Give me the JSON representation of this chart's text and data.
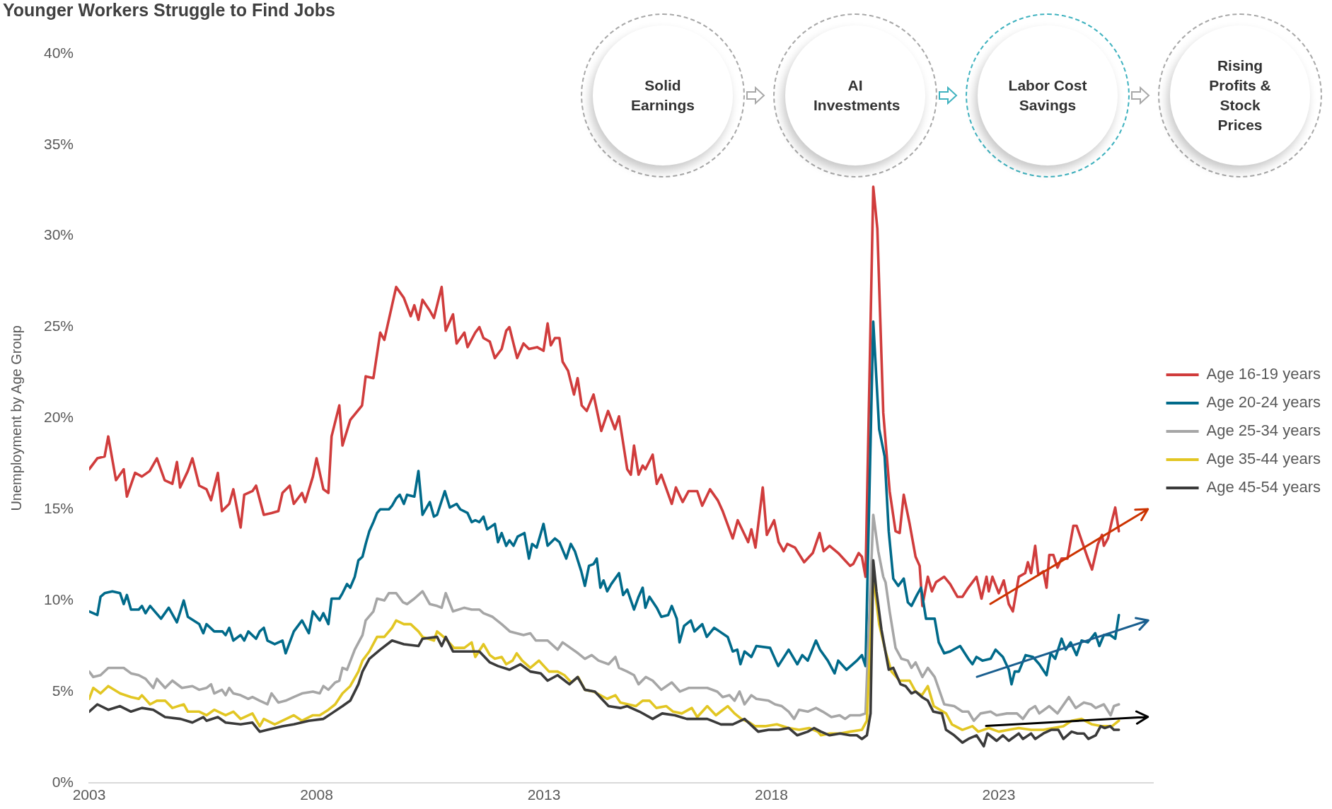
{
  "chart_data": {
    "type": "line",
    "title": "Younger Workers Struggle to Find Jobs",
    "ylabel": "Unemployment by Age Group",
    "legend": "right",
    "grid": false,
    "marker": "none",
    "xlim": [
      2003,
      2026.4
    ],
    "xticks": [
      2003,
      2008,
      2013,
      2018,
      2023
    ],
    "ylim": [
      0,
      40
    ],
    "yticks": [
      {
        "value": 0,
        "label": "0%"
      },
      {
        "value": 5,
        "label": "5%"
      },
      {
        "value": 10,
        "label": "10%"
      },
      {
        "value": 15,
        "label": "15%"
      },
      {
        "value": 20,
        "label": "20%"
      },
      {
        "value": 25,
        "label": "25%"
      },
      {
        "value": 30,
        "label": "30%"
      },
      {
        "value": 35,
        "label": "35%"
      },
      {
        "value": 40,
        "label": "40%"
      }
    ],
    "annotations": [
      "Solid Earnings",
      "AI Investments",
      "Labor Cost Savings",
      "Rising Profits & Stock Prices"
    ],
    "series": [
      {
        "name": "Age 16-19 years",
        "color": "#d03c3c",
        "x": [
          2003.0,
          2003.18,
          2003.34,
          2003.42,
          2003.59,
          2003.76,
          2003.83,
          2004.01,
          2004.16,
          2004.33,
          2004.49,
          2004.66,
          2004.83,
          2004.93,
          2005.0,
          2005.17,
          2005.27,
          2005.42,
          2005.58,
          2005.68,
          2005.83,
          2005.92,
          2006.08,
          2006.17,
          2006.33,
          2006.41,
          2006.59,
          2006.67,
          2006.84,
          2007.01,
          2007.16,
          2007.25,
          2007.41,
          2007.5,
          2007.68,
          2007.75,
          2007.92,
          2008.0,
          2008.15,
          2008.26,
          2008.33,
          2008.5,
          2008.57,
          2008.74,
          2009.0,
          2009.08,
          2009.25,
          2009.4,
          2009.49,
          2009.66,
          2009.75,
          2009.92,
          2010.07,
          2010.15,
          2010.24,
          2010.33,
          2010.49,
          2010.58,
          2010.75,
          2010.84,
          2011.0,
          2011.08,
          2011.25,
          2011.32,
          2011.49,
          2011.58,
          2011.67,
          2011.81,
          2011.92,
          2012.07,
          2012.17,
          2012.24,
          2012.41,
          2012.55,
          2012.67,
          2012.85,
          2012.99,
          2013.08,
          2013.15,
          2013.24,
          2013.34,
          2013.41,
          2013.53,
          2013.66,
          2013.74,
          2013.83,
          2013.94,
          2014.09,
          2014.26,
          2014.41,
          2014.56,
          2014.65,
          2014.83,
          2014.91,
          2014.98,
          2015.08,
          2015.17,
          2015.23,
          2015.39,
          2015.48,
          2015.58,
          2015.81,
          2015.9,
          2016.05,
          2016.18,
          2016.37,
          2016.48,
          2016.65,
          2016.82,
          2016.93,
          2017.15,
          2017.26,
          2017.49,
          2017.56,
          2017.65,
          2017.81,
          2017.9,
          2018.06,
          2018.16,
          2018.27,
          2018.35,
          2018.52,
          2018.72,
          2018.91,
          2019.06,
          2019.15,
          2019.28,
          2019.47,
          2019.62,
          2019.73,
          2019.8,
          2019.92,
          2019.99,
          2020.07,
          2020.24,
          2020.33,
          2020.46,
          2020.6,
          2020.73,
          2020.82,
          2020.91,
          2021.04,
          2021.17,
          2021.26,
          2021.32,
          2021.44,
          2021.53,
          2021.62,
          2021.8,
          2021.93,
          2022.09,
          2022.2,
          2022.33,
          2022.51,
          2022.62,
          2022.73,
          2022.78,
          2022.86,
          2023.0,
          2023.11,
          2023.22,
          2023.31,
          2023.44,
          2023.58,
          2023.64,
          2023.71,
          2023.8,
          2023.87,
          2023.98,
          2024.05,
          2024.11,
          2024.2,
          2024.29,
          2024.38,
          2024.51,
          2024.64,
          2024.71,
          2024.82,
          2024.96,
          2025.05,
          2025.18,
          2025.27,
          2025.31,
          2025.4,
          2025.49,
          2025.56,
          2025.64
        ],
        "values": [
          17.2,
          17.8,
          17.9,
          19.0,
          16.6,
          17.2,
          15.7,
          17.0,
          16.8,
          17.1,
          17.8,
          16.6,
          16.4,
          17.6,
          16.2,
          17.1,
          17.8,
          16.3,
          16.1,
          15.5,
          17.0,
          14.9,
          15.3,
          16.1,
          14.0,
          15.8,
          16.0,
          16.3,
          14.7,
          14.8,
          14.9,
          15.9,
          16.3,
          15.3,
          15.9,
          15.4,
          16.8,
          17.8,
          16.1,
          15.9,
          19.0,
          20.7,
          18.5,
          19.9,
          20.7,
          22.3,
          22.2,
          24.7,
          24.3,
          26.2,
          27.2,
          26.6,
          25.6,
          26.2,
          25.4,
          26.5,
          25.9,
          25.5,
          27.2,
          24.8,
          25.7,
          24.1,
          24.7,
          23.9,
          24.7,
          25.0,
          24.4,
          24.2,
          23.3,
          23.8,
          24.8,
          25.0,
          23.3,
          24.1,
          23.8,
          23.9,
          23.7,
          25.2,
          24.0,
          24.4,
          24.4,
          23.1,
          22.6,
          21.3,
          22.2,
          20.7,
          20.4,
          21.3,
          19.3,
          20.4,
          19.4,
          20.1,
          17.2,
          16.9,
          18.5,
          16.9,
          17.4,
          17.2,
          18.0,
          16.4,
          16.9,
          15.3,
          16.2,
          15.4,
          16.0,
          16.0,
          15.2,
          16.1,
          15.5,
          14.9,
          13.4,
          14.4,
          13.2,
          13.9,
          12.9,
          16.2,
          13.6,
          14.4,
          13.2,
          12.7,
          13.1,
          12.9,
          12.1,
          12.6,
          13.7,
          12.7,
          13.0,
          12.6,
          12.2,
          11.9,
          12.0,
          12.6,
          12.4,
          11.3,
          32.7,
          30.4,
          20.3,
          16.0,
          13.8,
          13.7,
          15.8,
          14.2,
          12.4,
          11.9,
          9.7,
          11.3,
          10.5,
          11.0,
          11.3,
          10.9,
          10.2,
          10.2,
          10.7,
          11.3,
          10.1,
          11.3,
          10.5,
          11.3,
          10.4,
          11.1,
          9.8,
          9.4,
          11.3,
          11.5,
          12.1,
          11.5,
          13.0,
          11.4,
          11.6,
          10.7,
          12.5,
          12.5,
          11.8,
          12.3,
          12.3,
          14.1,
          14.1,
          13.3,
          12.3,
          11.7,
          13.1,
          13.6,
          13.0,
          13.4,
          14.4,
          15.1,
          13.8
        ]
      },
      {
        "name": "Age 20-24 years",
        "color": "#006a8a",
        "x": [
          2003.0,
          2003.18,
          2003.25,
          2003.34,
          2003.51,
          2003.68,
          2003.76,
          2003.83,
          2003.92,
          2004.09,
          2004.16,
          2004.24,
          2004.34,
          2004.58,
          2004.75,
          2004.93,
          2005.08,
          2005.17,
          2005.42,
          2005.51,
          2005.58,
          2005.75,
          2005.93,
          2006.0,
          2006.08,
          2006.17,
          2006.33,
          2006.41,
          2006.5,
          2006.67,
          2006.75,
          2006.84,
          2006.92,
          2007.08,
          2007.25,
          2007.32,
          2007.5,
          2007.68,
          2007.83,
          2007.92,
          2008.07,
          2008.15,
          2008.26,
          2008.33,
          2008.5,
          2008.57,
          2008.67,
          2008.74,
          2008.84,
          2008.92,
          2009.01,
          2009.08,
          2009.16,
          2009.25,
          2009.33,
          2009.4,
          2009.59,
          2009.66,
          2009.75,
          2009.83,
          2009.92,
          2009.99,
          2010.15,
          2010.24,
          2010.33,
          2010.49,
          2010.58,
          2010.65,
          2010.82,
          2010.93,
          2011.08,
          2011.16,
          2011.32,
          2011.41,
          2011.49,
          2011.58,
          2011.67,
          2011.75,
          2011.92,
          2011.99,
          2012.07,
          2012.17,
          2012.24,
          2012.33,
          2012.42,
          2012.57,
          2012.67,
          2012.74,
          2012.84,
          2012.99,
          2013.08,
          2013.24,
          2013.34,
          2013.49,
          2013.59,
          2013.68,
          2013.82,
          2013.9,
          2013.99,
          2014.09,
          2014.16,
          2014.24,
          2014.31,
          2014.39,
          2014.48,
          2014.65,
          2014.74,
          2014.83,
          2014.98,
          2015.08,
          2015.17,
          2015.23,
          2015.32,
          2015.48,
          2015.58,
          2015.73,
          2015.81,
          2015.92,
          2015.98,
          2016.08,
          2016.23,
          2016.31,
          2016.48,
          2016.58,
          2016.74,
          2017.04,
          2017.15,
          2017.25,
          2017.32,
          2017.41,
          2017.56,
          2017.67,
          2017.97,
          2018.15,
          2018.38,
          2018.57,
          2018.68,
          2018.8,
          2018.98,
          2019.07,
          2019.24,
          2019.39,
          2019.47,
          2019.65,
          2019.88,
          2019.99,
          2020.07,
          2020.24,
          2020.37,
          2020.49,
          2020.58,
          2020.68,
          2020.79,
          2020.91,
          2021.0,
          2021.08,
          2021.2,
          2021.29,
          2021.4,
          2021.59,
          2021.68,
          2021.8,
          2021.93,
          2022.15,
          2022.33,
          2022.42,
          2022.51,
          2022.64,
          2022.82,
          2022.93,
          2023.09,
          2023.22,
          2023.28,
          2023.35,
          2023.44,
          2023.59,
          2023.75,
          2023.89,
          2024.05,
          2024.14,
          2024.24,
          2024.38,
          2024.47,
          2024.58,
          2024.71,
          2024.82,
          2024.96,
          2025.12,
          2025.21,
          2025.31,
          2025.45,
          2025.56,
          2025.64
        ],
        "values": [
          9.4,
          9.2,
          10.2,
          10.4,
          10.5,
          10.4,
          9.8,
          10.3,
          9.5,
          9.5,
          9.7,
          9.3,
          9.7,
          9.0,
          9.6,
          8.8,
          10.0,
          9.1,
          8.7,
          8.2,
          8.7,
          8.3,
          8.3,
          8.1,
          8.5,
          7.8,
          8.1,
          7.8,
          8.3,
          7.9,
          8.3,
          8.5,
          7.8,
          7.6,
          7.8,
          7.1,
          8.3,
          8.9,
          8.2,
          9.4,
          8.9,
          9.3,
          8.7,
          10.1,
          10.1,
          10.4,
          10.9,
          10.7,
          11.3,
          12.2,
          12.4,
          13.1,
          13.8,
          14.3,
          14.8,
          15.0,
          15.0,
          15.2,
          15.6,
          15.8,
          15.3,
          15.8,
          15.7,
          17.1,
          14.7,
          15.4,
          14.6,
          14.7,
          16.0,
          15.1,
          15.3,
          15.0,
          14.8,
          14.3,
          14.4,
          14.3,
          14.6,
          13.9,
          14.2,
          13.2,
          13.7,
          13.0,
          13.3,
          13.0,
          13.5,
          13.7,
          12.3,
          13.1,
          12.9,
          14.2,
          13.0,
          13.4,
          13.2,
          12.3,
          13.1,
          12.7,
          11.6,
          10.8,
          11.9,
          12.0,
          12.3,
          10.7,
          11.1,
          10.5,
          10.9,
          11.5,
          10.3,
          10.6,
          9.5,
          10.2,
          10.7,
          9.6,
          10.2,
          9.6,
          9.1,
          9.2,
          9.7,
          9.0,
          7.7,
          8.6,
          8.9,
          8.3,
          8.7,
          8.0,
          8.5,
          8.0,
          7.2,
          7.3,
          6.5,
          7.2,
          6.9,
          7.5,
          7.4,
          6.4,
          7.3,
          6.5,
          7.0,
          6.7,
          7.8,
          7.3,
          6.7,
          6.0,
          6.7,
          6.2,
          6.7,
          7.0,
          6.4,
          25.3,
          19.4,
          17.9,
          13.8,
          11.2,
          10.8,
          11.2,
          9.9,
          9.7,
          10.3,
          10.7,
          9.0,
          9.0,
          7.7,
          7.1,
          7.2,
          7.5,
          6.8,
          6.5,
          6.9,
          6.7,
          6.8,
          7.3,
          6.9,
          6.2,
          5.4,
          6.1,
          6.1,
          7.0,
          6.9,
          6.5,
          5.9,
          7.1,
          6.8,
          7.9,
          7.3,
          7.7,
          7.0,
          7.8,
          7.7,
          8.2,
          7.5,
          8.1,
          8.1,
          7.9,
          9.2
        ]
      },
      {
        "name": "Age 25-34 years",
        "color": "#a6a6a6",
        "x": [
          2003.0,
          2003.09,
          2003.25,
          2003.42,
          2003.59,
          2003.76,
          2003.92,
          2004.09,
          2004.24,
          2004.41,
          2004.49,
          2004.67,
          2004.83,
          2005.04,
          2005.27,
          2005.42,
          2005.58,
          2005.68,
          2005.75,
          2005.92,
          2006.0,
          2006.08,
          2006.17,
          2006.33,
          2006.5,
          2006.59,
          2006.75,
          2006.92,
          2007.01,
          2007.16,
          2007.32,
          2007.5,
          2007.68,
          2007.92,
          2008.07,
          2008.15,
          2008.26,
          2008.41,
          2008.5,
          2008.57,
          2008.67,
          2008.84,
          2009.01,
          2009.08,
          2009.25,
          2009.33,
          2009.49,
          2009.59,
          2009.75,
          2009.9,
          2009.99,
          2010.15,
          2010.33,
          2010.49,
          2010.65,
          2010.75,
          2010.84,
          2011.0,
          2011.25,
          2011.41,
          2011.58,
          2011.67,
          2011.87,
          2012.07,
          2012.25,
          2012.55,
          2012.7,
          2012.82,
          2013.08,
          2013.3,
          2013.41,
          2013.75,
          2013.9,
          2014.05,
          2014.2,
          2014.42,
          2014.57,
          2014.65,
          2014.83,
          2014.98,
          2015.08,
          2015.24,
          2015.39,
          2015.58,
          2015.81,
          2015.99,
          2016.18,
          2016.37,
          2016.59,
          2016.81,
          2016.93,
          2017.08,
          2017.19,
          2017.3,
          2017.41,
          2017.56,
          2017.67,
          2017.94,
          2018.08,
          2018.23,
          2018.38,
          2018.5,
          2018.61,
          2018.8,
          2018.98,
          2019.13,
          2019.32,
          2019.5,
          2019.62,
          2019.73,
          2019.95,
          2020.07,
          2020.24,
          2020.35,
          2020.46,
          2020.51,
          2020.6,
          2020.73,
          2020.86,
          2021.0,
          2021.08,
          2021.17,
          2021.32,
          2021.44,
          2021.59,
          2021.8,
          2022.02,
          2022.2,
          2022.33,
          2022.45,
          2022.6,
          2022.82,
          2022.95,
          2023.18,
          2023.4,
          2023.53,
          2023.67,
          2023.8,
          2023.89,
          2024.11,
          2024.29,
          2024.54,
          2024.69,
          2024.87,
          2025.03,
          2025.13,
          2025.31,
          2025.46,
          2025.53,
          2025.64
        ],
        "values": [
          6.1,
          5.8,
          5.9,
          6.3,
          6.3,
          6.3,
          6.0,
          5.9,
          5.7,
          5.2,
          5.7,
          5.2,
          5.6,
          5.2,
          5.3,
          5.1,
          5.2,
          5.4,
          4.9,
          5.1,
          4.8,
          5.2,
          4.9,
          4.8,
          4.6,
          4.7,
          4.5,
          4.3,
          4.9,
          4.4,
          4.5,
          4.7,
          4.9,
          5.0,
          4.9,
          5.3,
          5.1,
          5.5,
          5.6,
          6.3,
          6.2,
          7.3,
          8.1,
          8.9,
          9.4,
          10.1,
          10.0,
          10.4,
          10.4,
          9.9,
          9.8,
          10.1,
          10.5,
          9.8,
          9.7,
          9.6,
          10.4,
          9.4,
          9.6,
          9.5,
          9.5,
          9.3,
          9.1,
          8.7,
          8.3,
          8.1,
          8.2,
          7.8,
          7.8,
          7.3,
          7.7,
          7.1,
          6.8,
          7.0,
          6.7,
          6.5,
          6.9,
          6.3,
          6.1,
          5.9,
          5.4,
          5.8,
          5.6,
          5.1,
          5.5,
          5.0,
          5.2,
          5.2,
          5.2,
          5.0,
          4.7,
          4.8,
          4.5,
          5.0,
          4.3,
          4.8,
          4.6,
          4.5,
          4.3,
          4.2,
          3.9,
          3.5,
          4.0,
          3.9,
          4.1,
          3.9,
          3.6,
          3.7,
          3.5,
          3.7,
          3.7,
          3.8,
          14.7,
          12.7,
          11.3,
          11.0,
          9.4,
          7.4,
          6.8,
          6.7,
          6.3,
          6.6,
          5.8,
          6.3,
          5.8,
          4.3,
          4.2,
          3.9,
          3.9,
          3.4,
          3.8,
          3.9,
          3.7,
          3.8,
          3.8,
          3.5,
          4.0,
          4.2,
          3.8,
          4.2,
          3.8,
          4.7,
          4.1,
          4.4,
          4.3,
          4.1,
          4.3,
          3.7,
          4.2,
          4.3
        ]
      },
      {
        "name": "Age 35-44 years",
        "color": "#e2c623",
        "x": [
          2003.0,
          2003.09,
          2003.25,
          2003.42,
          2003.68,
          2003.92,
          2004.09,
          2004.16,
          2004.34,
          2004.49,
          2004.67,
          2004.83,
          2005.08,
          2005.17,
          2005.42,
          2005.58,
          2005.75,
          2006.0,
          2006.17,
          2006.33,
          2006.59,
          2006.75,
          2006.84,
          2007.08,
          2007.25,
          2007.5,
          2007.68,
          2007.92,
          2008.07,
          2008.26,
          2008.41,
          2008.57,
          2008.74,
          2008.92,
          2009.01,
          2009.16,
          2009.33,
          2009.49,
          2009.66,
          2009.75,
          2009.92,
          2010.07,
          2010.24,
          2010.33,
          2010.58,
          2010.65,
          2010.84,
          2011.02,
          2011.25,
          2011.41,
          2011.49,
          2011.67,
          2011.81,
          2011.92,
          2012.07,
          2012.17,
          2012.31,
          2012.4,
          2012.52,
          2012.7,
          2012.89,
          2013.11,
          2013.3,
          2013.45,
          2013.6,
          2013.75,
          2013.9,
          2014.09,
          2014.39,
          2014.57,
          2014.68,
          2015.02,
          2015.17,
          2015.32,
          2015.47,
          2015.69,
          2015.84,
          2016.03,
          2016.25,
          2016.37,
          2016.59,
          2016.78,
          2017.04,
          2017.19,
          2017.34,
          2017.52,
          2017.64,
          2017.86,
          2018.12,
          2018.38,
          2018.61,
          2018.83,
          2019.02,
          2019.09,
          2019.28,
          2019.51,
          2019.73,
          2019.99,
          2020.1,
          2020.24,
          2020.37,
          2020.51,
          2020.64,
          2020.82,
          2021.04,
          2021.17,
          2021.31,
          2021.44,
          2021.57,
          2021.84,
          2021.97,
          2022.2,
          2022.42,
          2022.55,
          2022.78,
          2023.0,
          2023.22,
          2023.44,
          2023.71,
          2023.98,
          2024.2,
          2024.42,
          2024.6,
          2024.82,
          2025.05,
          2025.27,
          2025.49,
          2025.64
        ],
        "values": [
          4.6,
          5.2,
          4.9,
          5.3,
          4.9,
          4.7,
          4.6,
          4.8,
          4.3,
          4.5,
          4.5,
          4.1,
          4.3,
          3.9,
          3.9,
          3.7,
          4.0,
          3.7,
          3.9,
          3.5,
          3.8,
          3.1,
          3.5,
          3.2,
          3.4,
          3.7,
          3.4,
          3.7,
          3.7,
          4.0,
          4.3,
          4.9,
          5.3,
          6.1,
          6.7,
          7.2,
          8.0,
          8.0,
          8.5,
          8.9,
          8.7,
          8.7,
          8.3,
          8.0,
          7.8,
          8.3,
          7.9,
          7.4,
          7.4,
          7.7,
          6.9,
          7.6,
          7.0,
          6.8,
          6.9,
          6.5,
          6.7,
          7.1,
          6.7,
          6.3,
          6.7,
          6.1,
          6.1,
          5.9,
          5.5,
          5.8,
          5.1,
          5.0,
          4.6,
          4.8,
          4.4,
          4.2,
          4.5,
          4.5,
          4.1,
          4.2,
          3.9,
          3.8,
          4.1,
          3.6,
          4.2,
          3.7,
          4.2,
          3.8,
          3.5,
          3.3,
          3.1,
          3.1,
          3.2,
          3.0,
          2.9,
          3.0,
          2.8,
          2.6,
          2.7,
          2.7,
          2.8,
          2.9,
          3.4,
          11.3,
          8.7,
          7.2,
          6.1,
          5.6,
          5.6,
          5.0,
          4.8,
          5.3,
          4.2,
          3.8,
          3.2,
          2.9,
          3.1,
          2.8,
          3.0,
          2.8,
          2.9,
          3.0,
          2.9,
          2.9,
          3.0,
          3.1,
          3.4,
          3.5,
          3.2,
          3.1,
          3.1,
          3.4
        ]
      },
      {
        "name": "Age 45-54 years",
        "color": "#3a3a3a",
        "x": [
          2003.0,
          2003.18,
          2003.42,
          2003.68,
          2003.92,
          2004.16,
          2004.41,
          2004.67,
          2005.01,
          2005.27,
          2005.51,
          2005.58,
          2005.83,
          2006.0,
          2006.33,
          2006.59,
          2006.75,
          2006.92,
          2007.25,
          2007.5,
          2007.83,
          2008.15,
          2008.33,
          2008.57,
          2008.74,
          2008.92,
          2009.01,
          2009.16,
          2009.4,
          2009.66,
          2009.92,
          2010.24,
          2010.33,
          2010.65,
          2010.75,
          2010.84,
          2011.0,
          2011.32,
          2011.58,
          2011.81,
          2011.99,
          2012.24,
          2012.48,
          2012.7,
          2012.93,
          2013.08,
          2013.3,
          2013.56,
          2013.74,
          2013.9,
          2014.12,
          2014.42,
          2014.68,
          2014.83,
          2015.1,
          2015.39,
          2015.6,
          2015.88,
          2016.14,
          2016.59,
          2016.89,
          2017.15,
          2017.41,
          2017.71,
          2017.94,
          2018.16,
          2018.38,
          2018.57,
          2018.8,
          2018.94,
          2019.09,
          2019.28,
          2019.51,
          2019.73,
          2019.88,
          2019.99,
          2020.1,
          2020.18,
          2020.24,
          2020.31,
          2020.42,
          2020.58,
          2020.68,
          2020.84,
          2020.95,
          2021.08,
          2021.17,
          2021.31,
          2021.44,
          2021.56,
          2021.75,
          2021.84,
          2022.02,
          2022.2,
          2022.33,
          2022.51,
          2022.67,
          2022.75,
          2022.95,
          2023.09,
          2023.22,
          2023.44,
          2023.53,
          2023.71,
          2023.8,
          2023.98,
          2024.15,
          2024.31,
          2024.42,
          2024.6,
          2024.73,
          2024.87,
          2024.97,
          2025.13,
          2025.24,
          2025.33,
          2025.45,
          2025.53,
          2025.64
        ],
        "values": [
          3.9,
          4.3,
          4.0,
          4.2,
          3.9,
          4.1,
          4.0,
          3.6,
          3.5,
          3.3,
          3.6,
          3.4,
          3.6,
          3.3,
          3.2,
          3.3,
          2.8,
          2.9,
          3.1,
          3.2,
          3.4,
          3.5,
          3.8,
          4.2,
          4.5,
          5.4,
          6.1,
          6.8,
          7.3,
          7.8,
          7.6,
          7.5,
          7.9,
          8.0,
          7.5,
          8.0,
          7.2,
          7.2,
          7.2,
          6.6,
          6.4,
          6.2,
          6.5,
          6.1,
          6.0,
          5.6,
          5.9,
          5.4,
          5.8,
          5.1,
          5.0,
          4.2,
          4.1,
          4.2,
          3.9,
          3.5,
          3.8,
          3.7,
          3.5,
          3.5,
          3.2,
          3.2,
          3.5,
          2.8,
          2.9,
          2.9,
          3.0,
          2.6,
          2.8,
          3.0,
          2.8,
          2.6,
          2.7,
          2.6,
          2.6,
          2.4,
          2.6,
          3.8,
          12.2,
          10.5,
          8.4,
          6.2,
          6.3,
          5.4,
          5.3,
          4.9,
          5.0,
          4.7,
          4.5,
          3.9,
          3.8,
          2.9,
          2.6,
          2.2,
          2.4,
          2.6,
          2.0,
          2.7,
          2.3,
          2.6,
          2.3,
          2.7,
          2.4,
          2.7,
          2.4,
          2.7,
          2.9,
          2.9,
          2.4,
          2.8,
          2.7,
          2.7,
          2.4,
          2.6,
          3.1,
          3.0,
          3.1,
          2.9,
          2.9
        ]
      }
    ]
  }
}
